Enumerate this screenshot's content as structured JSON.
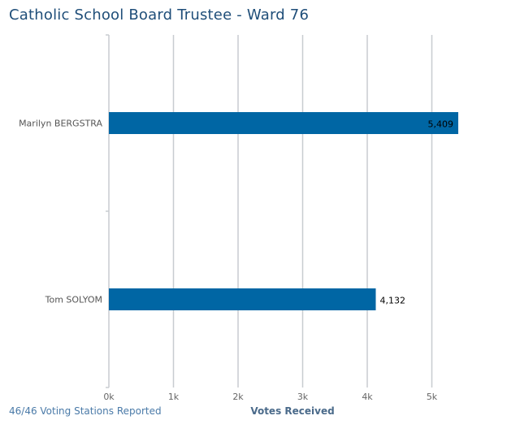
{
  "title": "Catholic School Board Trustee - Ward 76",
  "footer_note": "46/46 Voting Stations Reported",
  "chart_data": {
    "type": "bar",
    "orientation": "horizontal",
    "title": "Catholic School Board Trustee - Ward 76",
    "xlabel": "Votes Received",
    "ylabel": "",
    "categories": [
      "Marilyn BERGSTRA",
      "Tom SOLYOM"
    ],
    "values": [
      5409,
      4132
    ],
    "value_labels": [
      "5,409",
      "4,132"
    ],
    "xlim": [
      0,
      5500
    ],
    "x_ticks": [
      0,
      1000,
      2000,
      3000,
      4000,
      5000
    ],
    "x_tick_labels": [
      "0k",
      "1k",
      "2k",
      "3k",
      "4k",
      "5k"
    ],
    "grid": "vertical",
    "legend": "none",
    "bar_color": "#0066a4"
  }
}
